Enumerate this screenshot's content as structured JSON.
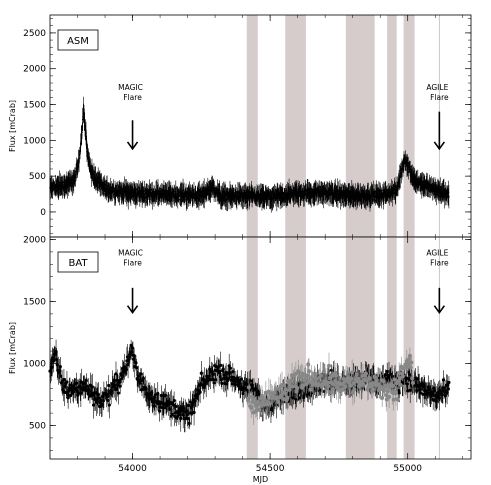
{
  "chart_data": [
    {
      "type": "scatter",
      "panel_label": "ASM",
      "ylabel": "Flux [mCrab]",
      "xlim": [
        53700,
        55230
      ],
      "ylim": [
        -350,
        2750
      ],
      "yticks": [
        0,
        500,
        1000,
        1500,
        2000,
        2500
      ],
      "shaded_regions": [
        [
          54415,
          54455
        ],
        [
          54555,
          54630
        ],
        [
          54775,
          54880
        ],
        [
          54925,
          54960
        ],
        [
          54985,
          55025
        ]
      ],
      "annotations": [
        {
          "text": "MAGIC Flare",
          "lines": [
            "MAGIC",
            "Flare"
          ],
          "x": 54000,
          "y_arrow_top": 1280,
          "y_arrow_bottom": 880,
          "y_text": 1700
        },
        {
          "text": "AGILE Flare",
          "lines": [
            "AGILE",
            "Flare"
          ],
          "x": 55115,
          "y_arrow_top": 1400,
          "y_arrow_bottom": 880,
          "y_text": 1700
        }
      ],
      "vline": 55115,
      "series": [
        {
          "color": "#000000",
          "profile": [
            [
              53700,
              330
            ],
            [
              53760,
              380
            ],
            [
              53790,
              450
            ],
            [
              53805,
              700
            ],
            [
              53815,
              1100
            ],
            [
              53822,
              1450
            ],
            [
              53828,
              1150
            ],
            [
              53840,
              700
            ],
            [
              53860,
              480
            ],
            [
              53900,
              320
            ],
            [
              53950,
              280
            ],
            [
              54050,
              250
            ],
            [
              54150,
              240
            ],
            [
              54250,
              230
            ],
            [
              54290,
              340
            ],
            [
              54320,
              220
            ],
            [
              54400,
              220
            ],
            [
              54500,
              200
            ],
            [
              54600,
              260
            ],
            [
              54700,
              270
            ],
            [
              54800,
              230
            ],
            [
              54900,
              230
            ],
            [
              54960,
              290
            ],
            [
              54975,
              550
            ],
            [
              54990,
              750
            ],
            [
              55005,
              600
            ],
            [
              55030,
              420
            ],
            [
              55080,
              340
            ],
            [
              55130,
              270
            ],
            [
              55150,
              250
            ]
          ],
          "noise": 95
        }
      ]
    },
    {
      "type": "scatter",
      "panel_label": "BAT",
      "ylabel": "Flux [mCrab]",
      "xlabel": "MJD",
      "xlim": [
        53700,
        55230
      ],
      "ylim": [
        230,
        2020
      ],
      "yticks": [
        500,
        1000,
        1500,
        2000
      ],
      "xticks": [
        54000,
        54500,
        55000
      ],
      "shaded_regions": [
        [
          54415,
          54455
        ],
        [
          54555,
          54630
        ],
        [
          54775,
          54880
        ],
        [
          54925,
          54960
        ],
        [
          54985,
          55025
        ]
      ],
      "annotations": [
        {
          "text": "MAGIC Flare",
          "lines": [
            "MAGIC",
            "Flare"
          ],
          "x": 54000,
          "y_arrow_top": 1610,
          "y_arrow_bottom": 1410,
          "y_text": 1870
        },
        {
          "text": "AGILE Flare",
          "lines": [
            "AGILE",
            "Flare"
          ],
          "x": 55115,
          "y_arrow_top": 1610,
          "y_arrow_bottom": 1410,
          "y_text": 1870
        }
      ],
      "vline": 55115,
      "series": [
        {
          "color": "#000000",
          "profile": [
            [
              53700,
              950
            ],
            [
              53720,
              1050
            ],
            [
              53750,
              800
            ],
            [
              53780,
              780
            ],
            [
              53820,
              820
            ],
            [
              53850,
              780
            ],
            [
              53880,
              700
            ],
            [
              53920,
              760
            ],
            [
              53960,
              900
            ],
            [
              54000,
              1100
            ],
            [
              54020,
              880
            ],
            [
              54060,
              760
            ],
            [
              54100,
              700
            ],
            [
              54150,
              640
            ],
            [
              54200,
              570
            ],
            [
              54250,
              820
            ],
            [
              54300,
              940
            ],
            [
              54350,
              900
            ],
            [
              54400,
              820
            ],
            [
              54450,
              760
            ],
            [
              54480,
              650
            ],
            [
              54520,
              700
            ],
            [
              54600,
              780
            ],
            [
              54650,
              820
            ],
            [
              54700,
              850
            ],
            [
              54780,
              860
            ],
            [
              54850,
              880
            ],
            [
              54900,
              850
            ],
            [
              54950,
              860
            ],
            [
              55000,
              870
            ],
            [
              55050,
              800
            ],
            [
              55100,
              740
            ],
            [
              55150,
              780
            ]
          ],
          "noise": 110
        },
        {
          "color": "#888888",
          "profile": [
            [
              54420,
              720
            ],
            [
              54440,
              650
            ],
            [
              54560,
              780
            ],
            [
              54600,
              850
            ],
            [
              54625,
              900
            ],
            [
              54780,
              840
            ],
            [
              54850,
              860
            ],
            [
              54875,
              820
            ],
            [
              54930,
              780
            ],
            [
              54955,
              760
            ],
            [
              54990,
              950
            ],
            [
              55010,
              1050
            ],
            [
              55020,
              850
            ]
          ],
          "noise": 140
        }
      ]
    }
  ]
}
